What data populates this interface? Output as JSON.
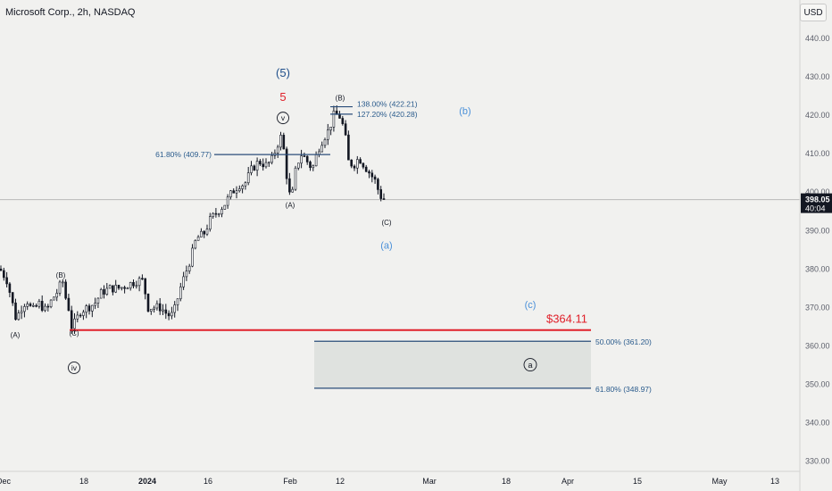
{
  "header": {
    "symbol_title": "Microsoft Corp., 2h, NASDAQ",
    "currency_button": "USD"
  },
  "price_tag": {
    "price": "398.05",
    "countdown": "40:04"
  },
  "colors": {
    "background": "#f1f1ef",
    "candle": "#131722",
    "fib_line": "#2a4d7a",
    "fib_text": "#2a5b8c",
    "wave_blue": "#4a90d9",
    "wave_dark_blue": "#1f4f8b",
    "support_line": "#e0202a",
    "zone_fill": "#dfe2df",
    "price_tag_bg": "#131722"
  },
  "chart_data": {
    "type": "candlestick",
    "symbol": "Microsoft Corp.",
    "timeframe": "2h",
    "exchange": "NASDAQ",
    "currency": "USD",
    "ylim": [
      330,
      447
    ],
    "y_ticks": [
      440,
      430,
      420,
      410,
      400,
      390,
      380,
      370,
      360,
      350,
      340,
      330
    ],
    "y_tick_labels": [
      "440.00",
      "430.00",
      "420.00",
      "410.00",
      "400.00",
      "390.00",
      "380.00",
      "370.00",
      "360.00",
      "350.00",
      "340.00",
      "330.00"
    ],
    "x_tick_labels": [
      "Dec",
      "18",
      "2024",
      "16",
      "Feb",
      "12",
      "Mar",
      "18",
      "Apr",
      "15",
      "May",
      "13"
    ],
    "last_price": 398.05,
    "close_path": [
      [
        0,
        380
      ],
      [
        8,
        377
      ],
      [
        14,
        371
      ],
      [
        18,
        367
      ],
      [
        24,
        370
      ],
      [
        30,
        372
      ],
      [
        36,
        369
      ],
      [
        44,
        371
      ],
      [
        52,
        369
      ],
      [
        58,
        372
      ],
      [
        64,
        374
      ],
      [
        70,
        377
      ],
      [
        74,
        372
      ],
      [
        78,
        369
      ],
      [
        80,
        365
      ],
      [
        84,
        366
      ],
      [
        90,
        369
      ],
      [
        98,
        370
      ],
      [
        106,
        371
      ],
      [
        114,
        374
      ],
      [
        124,
        375
      ],
      [
        134,
        375
      ],
      [
        144,
        376
      ],
      [
        154,
        377
      ],
      [
        160,
        377
      ],
      [
        166,
        370
      ],
      [
        172,
        370
      ],
      [
        180,
        370
      ],
      [
        188,
        368
      ],
      [
        194,
        368
      ],
      [
        202,
        375
      ],
      [
        208,
        379
      ],
      [
        214,
        383
      ],
      [
        220,
        388
      ],
      [
        228,
        389
      ],
      [
        236,
        393
      ],
      [
        244,
        395
      ],
      [
        252,
        397
      ],
      [
        260,
        400
      ],
      [
        268,
        402
      ],
      [
        274,
        402
      ],
      [
        282,
        406
      ],
      [
        290,
        408
      ],
      [
        298,
        407
      ],
      [
        304,
        408
      ],
      [
        310,
        412
      ],
      [
        316,
        415
      ],
      [
        320,
        406
      ],
      [
        326,
        397
      ],
      [
        332,
        407
      ],
      [
        338,
        410
      ],
      [
        344,
        408
      ],
      [
        350,
        406
      ],
      [
        356,
        411
      ],
      [
        362,
        414
      ],
      [
        368,
        416
      ],
      [
        374,
        420
      ],
      [
        380,
        420
      ],
      [
        386,
        416
      ],
      [
        390,
        408
      ],
      [
        396,
        407
      ],
      [
        402,
        409
      ],
      [
        408,
        407
      ],
      [
        414,
        405
      ],
      [
        420,
        403
      ],
      [
        426,
        399
      ],
      [
        432,
        398
      ]
    ],
    "horizontal_levels": [
      {
        "label": "$364.11",
        "value": 364.11,
        "color": "#e0202a"
      },
      {
        "label": "50.00% (361.20)",
        "value": 361.2
      },
      {
        "label": "61.80% (348.97)",
        "value": 348.97
      },
      {
        "label": "61.80% (409.77)",
        "value": 409.77
      },
      {
        "label": "127.20% (420.28)",
        "value": 420.28
      },
      {
        "label": "138.00% (422.21)",
        "value": 422.21
      }
    ],
    "target_zone": {
      "from": 348.97,
      "to": 361.2,
      "label": "a"
    },
    "wave_labels": [
      {
        "text": "(A)",
        "price": 362.2
      },
      {
        "text": "(B)",
        "price": 377.7
      },
      {
        "text": "(C)",
        "price": 362.6
      },
      {
        "text": "iv",
        "price": 353.6
      },
      {
        "text": "(5)",
        "price": 430.0
      },
      {
        "text": "5",
        "price": 423.7
      },
      {
        "text": "v",
        "price": 418.6
      },
      {
        "text": "(A)",
        "price": 396.0
      },
      {
        "text": "(B)",
        "price": 423.8
      },
      {
        "text": "(C)",
        "price": 391.4
      },
      {
        "text": "(a)",
        "price": 385.3
      },
      {
        "text": "(b)",
        "price": 420.3
      },
      {
        "text": "(c)",
        "price": 369.8
      }
    ]
  }
}
